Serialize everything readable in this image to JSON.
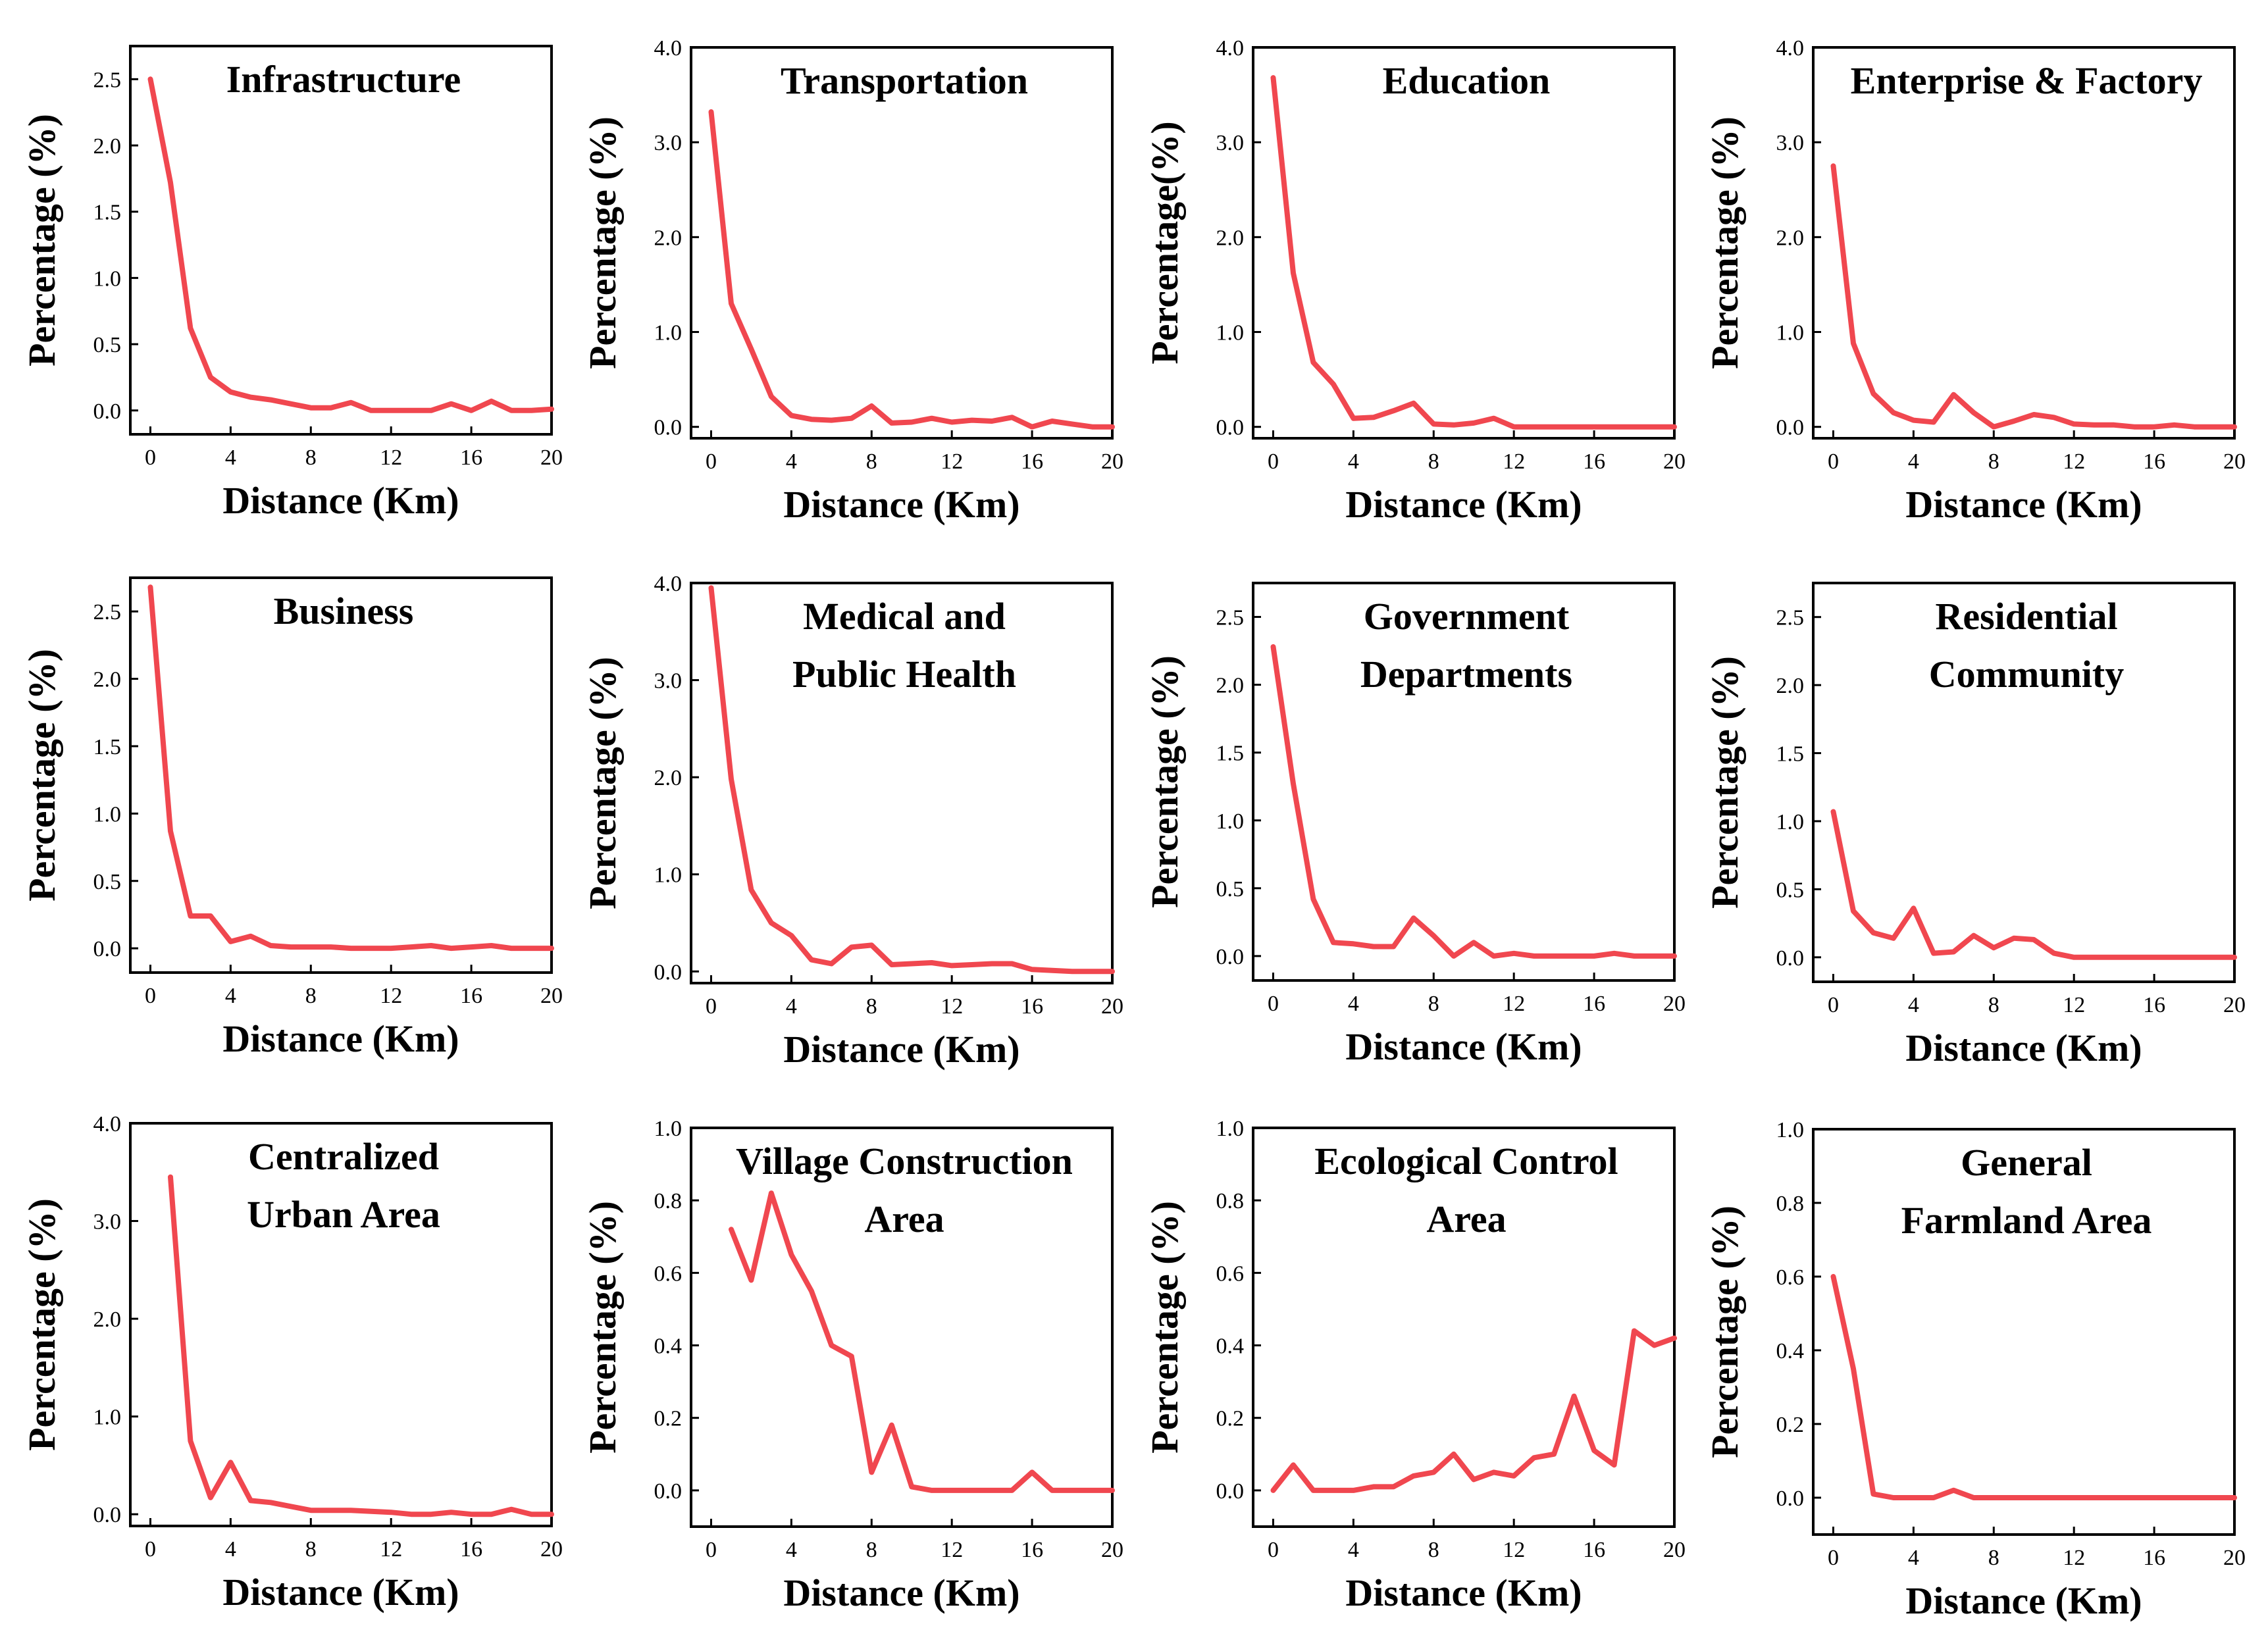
{
  "figure": {
    "line_color": "#f0474f"
  },
  "chart_data": [
    {
      "type": "line",
      "title": [
        "Infrastructure"
      ],
      "xlabel": "Distance (Km)",
      "ylabel": "Percentage (%)",
      "xlim": [
        -1,
        20
      ],
      "ylim": [
        -0.18,
        2.75
      ],
      "xticks": [
        0,
        4,
        8,
        12,
        16,
        20
      ],
      "xtick_labels": [
        "0",
        "4",
        "8",
        "12",
        "16",
        "20"
      ],
      "yticks": [
        0,
        0.5,
        1.0,
        1.5,
        2.0,
        2.5
      ],
      "ytick_labels": [
        "0.0",
        "0.5",
        "1.0",
        "1.5",
        "2.0",
        "2.5"
      ],
      "x": [
        0,
        1,
        2,
        3,
        4,
        5,
        6,
        7,
        8,
        9,
        10,
        11,
        12,
        13,
        14,
        15,
        16,
        17,
        18,
        19,
        20
      ],
      "y": [
        2.5,
        1.72,
        0.62,
        0.25,
        0.14,
        0.1,
        0.08,
        0.05,
        0.02,
        0.02,
        0.06,
        0.0,
        0.0,
        0.0,
        0.0,
        0.05,
        0.0,
        0.07,
        0.0,
        0.0,
        0.01
      ]
    },
    {
      "type": "line",
      "title": [
        "Transportation"
      ],
      "xlabel": "Distance (Km)",
      "ylabel": "Percentage (%)",
      "xlim": [
        -1,
        20
      ],
      "ylim": [
        -0.12,
        4.0
      ],
      "xticks": [
        0,
        4,
        8,
        12,
        16,
        20
      ],
      "xtick_labels": [
        "0",
        "4",
        "8",
        "12",
        "16",
        "20"
      ],
      "yticks": [
        0,
        1,
        2,
        3,
        4
      ],
      "ytick_labels": [
        "0.0",
        "1.0",
        "2.0",
        "3.0",
        "4.0"
      ],
      "x": [
        0,
        1,
        2,
        3,
        4,
        5,
        6,
        7,
        8,
        9,
        10,
        11,
        12,
        13,
        14,
        15,
        16,
        17,
        18,
        19,
        20
      ],
      "y": [
        3.32,
        1.3,
        0.82,
        0.32,
        0.12,
        0.08,
        0.07,
        0.09,
        0.22,
        0.04,
        0.05,
        0.09,
        0.05,
        0.07,
        0.06,
        0.1,
        0.0,
        0.06,
        0.03,
        0.0,
        0.0
      ]
    },
    {
      "type": "line",
      "title": [
        "Education"
      ],
      "xlabel": "Distance (Km)",
      "ylabel": "Percentage(%)",
      "xlim": [
        -1,
        20
      ],
      "ylim": [
        -0.12,
        4.0
      ],
      "xticks": [
        0,
        4,
        8,
        12,
        16,
        20
      ],
      "xtick_labels": [
        "0",
        "4",
        "8",
        "12",
        "16",
        "20"
      ],
      "yticks": [
        0,
        1,
        2,
        3,
        4
      ],
      "ytick_labels": [
        "0.0",
        "1.0",
        "2.0",
        "3.0",
        "4.0"
      ],
      "x": [
        0,
        1,
        2,
        3,
        4,
        5,
        6,
        7,
        8,
        9,
        10,
        11,
        12,
        13,
        14,
        15,
        16,
        17,
        18,
        19,
        20
      ],
      "y": [
        3.68,
        1.62,
        0.68,
        0.45,
        0.09,
        0.1,
        0.17,
        0.25,
        0.03,
        0.02,
        0.04,
        0.09,
        0.0,
        0.0,
        0.0,
        0.0,
        0.0,
        0.0,
        0.0,
        0.0,
        0.0
      ]
    },
    {
      "type": "line",
      "title": [
        "Enterprise & Factory"
      ],
      "xlabel": "Distance (Km)",
      "ylabel": "Percentage (%)",
      "xlim": [
        -1,
        20
      ],
      "ylim": [
        -0.12,
        4.0
      ],
      "xticks": [
        0,
        4,
        8,
        12,
        16,
        20
      ],
      "xtick_labels": [
        "0",
        "4",
        "8",
        "12",
        "16",
        "20"
      ],
      "yticks": [
        0,
        1,
        2,
        3,
        4
      ],
      "ytick_labels": [
        "0.0",
        "1.0",
        "2.0",
        "3.0",
        "4.0"
      ],
      "x": [
        0,
        1,
        2,
        3,
        4,
        5,
        6,
        7,
        8,
        9,
        10,
        11,
        12,
        13,
        14,
        15,
        16,
        17,
        18,
        19,
        20
      ],
      "y": [
        2.75,
        0.88,
        0.35,
        0.15,
        0.07,
        0.05,
        0.34,
        0.15,
        0.0,
        0.06,
        0.13,
        0.1,
        0.03,
        0.02,
        0.02,
        0.0,
        0.0,
        0.02,
        0.0,
        0.0,
        0.0
      ]
    },
    {
      "type": "line",
      "title": [
        "Business"
      ],
      "xlabel": "Distance (Km)",
      "ylabel": "Percentage (%)",
      "xlim": [
        -1,
        20
      ],
      "ylim": [
        -0.18,
        2.75
      ],
      "xticks": [
        0,
        4,
        8,
        12,
        16,
        20
      ],
      "xtick_labels": [
        "0",
        "4",
        "8",
        "12",
        "16",
        "20"
      ],
      "yticks": [
        0,
        0.5,
        1.0,
        1.5,
        2.0,
        2.5
      ],
      "ytick_labels": [
        "0.0",
        "0.5",
        "1.0",
        "1.5",
        "2.0",
        "2.5"
      ],
      "x": [
        0,
        1,
        2,
        3,
        4,
        5,
        6,
        7,
        8,
        9,
        10,
        11,
        12,
        13,
        14,
        15,
        16,
        17,
        18,
        19,
        20
      ],
      "y": [
        2.68,
        0.87,
        0.24,
        0.24,
        0.05,
        0.09,
        0.02,
        0.01,
        0.01,
        0.01,
        0.0,
        0.0,
        0.0,
        0.01,
        0.02,
        0.0,
        0.01,
        0.02,
        0.0,
        0.0,
        0.0
      ]
    },
    {
      "type": "line",
      "title": [
        "Medical and",
        "Public Health"
      ],
      "xlabel": "Distance (Km)",
      "ylabel": "Percentage (%)",
      "xlim": [
        -1,
        20
      ],
      "ylim": [
        -0.12,
        4.0
      ],
      "xticks": [
        0,
        4,
        8,
        12,
        16,
        20
      ],
      "xtick_labels": [
        "0",
        "4",
        "8",
        "12",
        "16",
        "20"
      ],
      "yticks": [
        0,
        1,
        2,
        3,
        4
      ],
      "ytick_labels": [
        "0.0",
        "1.0",
        "2.0",
        "3.0",
        "4.0"
      ],
      "x": [
        0,
        1,
        2,
        3,
        4,
        5,
        6,
        7,
        8,
        9,
        10,
        11,
        12,
        13,
        14,
        15,
        16,
        17,
        18,
        19,
        20
      ],
      "y": [
        3.95,
        1.98,
        0.84,
        0.5,
        0.37,
        0.12,
        0.08,
        0.25,
        0.27,
        0.07,
        0.08,
        0.09,
        0.06,
        0.07,
        0.08,
        0.08,
        0.02,
        0.01,
        0.0,
        0.0,
        0.0
      ]
    },
    {
      "type": "line",
      "title": [
        "Government",
        "Departments"
      ],
      "xlabel": "Distance (Km)",
      "ylabel": "Percentage (%)",
      "xlim": [
        -1,
        20
      ],
      "ylim": [
        -0.18,
        2.75
      ],
      "xticks": [
        0,
        4,
        8,
        12,
        16,
        20
      ],
      "xtick_labels": [
        "0",
        "4",
        "8",
        "12",
        "16",
        "20"
      ],
      "yticks": [
        0,
        0.5,
        1.0,
        1.5,
        2.0,
        2.5
      ],
      "ytick_labels": [
        "0.0",
        "0.5",
        "1.0",
        "1.5",
        "2.0",
        "2.5"
      ],
      "x": [
        0,
        1,
        2,
        3,
        4,
        5,
        6,
        7,
        8,
        9,
        10,
        11,
        12,
        13,
        14,
        15,
        16,
        17,
        18,
        19,
        20
      ],
      "y": [
        2.28,
        1.27,
        0.42,
        0.1,
        0.09,
        0.07,
        0.07,
        0.28,
        0.15,
        0.0,
        0.1,
        0.0,
        0.02,
        0.0,
        0.0,
        0.0,
        0.0,
        0.02,
        0.0,
        0.0,
        0.0
      ]
    },
    {
      "type": "line",
      "title": [
        "Residential",
        "Community"
      ],
      "xlabel": "Distance (Km)",
      "ylabel": "Percentage (%)",
      "xlim": [
        -1,
        20
      ],
      "ylim": [
        -0.18,
        2.75
      ],
      "xticks": [
        0,
        4,
        8,
        12,
        16,
        20
      ],
      "xtick_labels": [
        "0",
        "4",
        "8",
        "12",
        "16",
        "20"
      ],
      "yticks": [
        0,
        0.5,
        1.0,
        1.5,
        2.0,
        2.5
      ],
      "ytick_labels": [
        "0.0",
        "0.5",
        "1.0",
        "1.5",
        "2.0",
        "2.5"
      ],
      "x": [
        0,
        1,
        2,
        3,
        4,
        5,
        6,
        7,
        8,
        9,
        10,
        11,
        12,
        13,
        14,
        15,
        16,
        17,
        18,
        19,
        20
      ],
      "y": [
        1.07,
        0.34,
        0.18,
        0.14,
        0.36,
        0.03,
        0.04,
        0.16,
        0.07,
        0.14,
        0.13,
        0.03,
        0.0,
        0.0,
        0.0,
        0.0,
        0.0,
        0.0,
        0.0,
        0.0,
        0.0
      ]
    },
    {
      "type": "line",
      "title": [
        "Centralized",
        "Urban Area"
      ],
      "xlabel": "Distance (Km)",
      "ylabel": "Percentage (%)",
      "xlim": [
        -1,
        20
      ],
      "ylim": [
        -0.12,
        4.0
      ],
      "xticks": [
        0,
        4,
        8,
        12,
        16,
        20
      ],
      "xtick_labels": [
        "0",
        "4",
        "8",
        "12",
        "16",
        "20"
      ],
      "yticks": [
        0,
        1,
        2,
        3,
        4
      ],
      "ytick_labels": [
        "0.0",
        "1.0",
        "2.0",
        "3.0",
        "4.0"
      ],
      "x": [
        1,
        2,
        3,
        4,
        5,
        6,
        7,
        8,
        9,
        10,
        11,
        12,
        13,
        14,
        15,
        16,
        17,
        18,
        19,
        20
      ],
      "y": [
        3.45,
        0.75,
        0.17,
        0.53,
        0.14,
        0.12,
        0.08,
        0.04,
        0.04,
        0.04,
        0.03,
        0.02,
        0.0,
        0.0,
        0.02,
        0.0,
        0.0,
        0.05,
        0.0,
        0.0
      ]
    },
    {
      "type": "line",
      "title": [
        "Village Construction",
        "Area"
      ],
      "xlabel": "Distance (Km)",
      "ylabel": "Percentage (%)",
      "xlim": [
        -1,
        20
      ],
      "ylim": [
        -0.1,
        1.0
      ],
      "xticks": [
        0,
        4,
        8,
        12,
        16,
        20
      ],
      "xtick_labels": [
        "0",
        "4",
        "8",
        "12",
        "16",
        "20"
      ],
      "yticks": [
        0,
        0.2,
        0.4,
        0.6,
        0.8,
        1.0
      ],
      "ytick_labels": [
        "0.0",
        "0.2",
        "0.4",
        "0.6",
        "0.8",
        "1.0"
      ],
      "x": [
        1,
        2,
        3,
        4,
        5,
        6,
        7,
        8,
        9,
        10,
        11,
        12,
        13,
        14,
        15,
        16,
        17,
        18,
        19,
        20
      ],
      "y": [
        0.72,
        0.58,
        0.82,
        0.65,
        0.55,
        0.4,
        0.37,
        0.05,
        0.18,
        0.01,
        0.0,
        0.0,
        0.0,
        0.0,
        0.0,
        0.05,
        0.0,
        0.0,
        0.0,
        0.0
      ]
    },
    {
      "type": "line",
      "title": [
        "Ecological Control",
        "Area"
      ],
      "xlabel": "Distance (Km)",
      "ylabel": "Percentage (%)",
      "xlim": [
        -1,
        20
      ],
      "ylim": [
        -0.1,
        1.0
      ],
      "xticks": [
        0,
        4,
        8,
        12,
        16,
        20
      ],
      "xtick_labels": [
        "0",
        "4",
        "8",
        "12",
        "16",
        "20"
      ],
      "yticks": [
        0,
        0.2,
        0.4,
        0.6,
        0.8,
        1.0
      ],
      "ytick_labels": [
        "0.0",
        "0.2",
        "0.4",
        "0.6",
        "0.8",
        "1.0"
      ],
      "x": [
        0,
        1,
        2,
        3,
        4,
        5,
        6,
        7,
        8,
        9,
        10,
        11,
        12,
        13,
        14,
        15,
        16,
        17,
        18,
        19,
        20
      ],
      "y": [
        0.0,
        0.07,
        0.0,
        0.0,
        0.0,
        0.01,
        0.01,
        0.04,
        0.05,
        0.1,
        0.03,
        0.05,
        0.04,
        0.09,
        0.1,
        0.26,
        0.11,
        0.07,
        0.44,
        0.4,
        0.42
      ]
    },
    {
      "type": "line",
      "title": [
        "General",
        "Farmland Area"
      ],
      "xlabel": "Distance (Km)",
      "ylabel": "Percentage (%)",
      "xlim": [
        -1,
        20
      ],
      "ylim": [
        -0.1,
        1.0
      ],
      "xticks": [
        0,
        4,
        8,
        12,
        16,
        20
      ],
      "xtick_labels": [
        "0",
        "4",
        "8",
        "12",
        "16",
        "20"
      ],
      "yticks": [
        0,
        0.2,
        0.4,
        0.6,
        0.8,
        1.0
      ],
      "ytick_labels": [
        "0.0",
        "0.2",
        "0.4",
        "0.6",
        "0.8",
        "1.0"
      ],
      "x": [
        0,
        1,
        2,
        3,
        4,
        5,
        6,
        7,
        8,
        9,
        10,
        11,
        12,
        13,
        14,
        15,
        16,
        17,
        18,
        19,
        20
      ],
      "y": [
        0.6,
        0.35,
        0.01,
        0.0,
        0.0,
        0.0,
        0.02,
        0.0,
        0.0,
        0.0,
        0.0,
        0.0,
        0.0,
        0.0,
        0.0,
        0.0,
        0.0,
        0.0,
        0.0,
        0.0,
        0.0
      ]
    }
  ]
}
